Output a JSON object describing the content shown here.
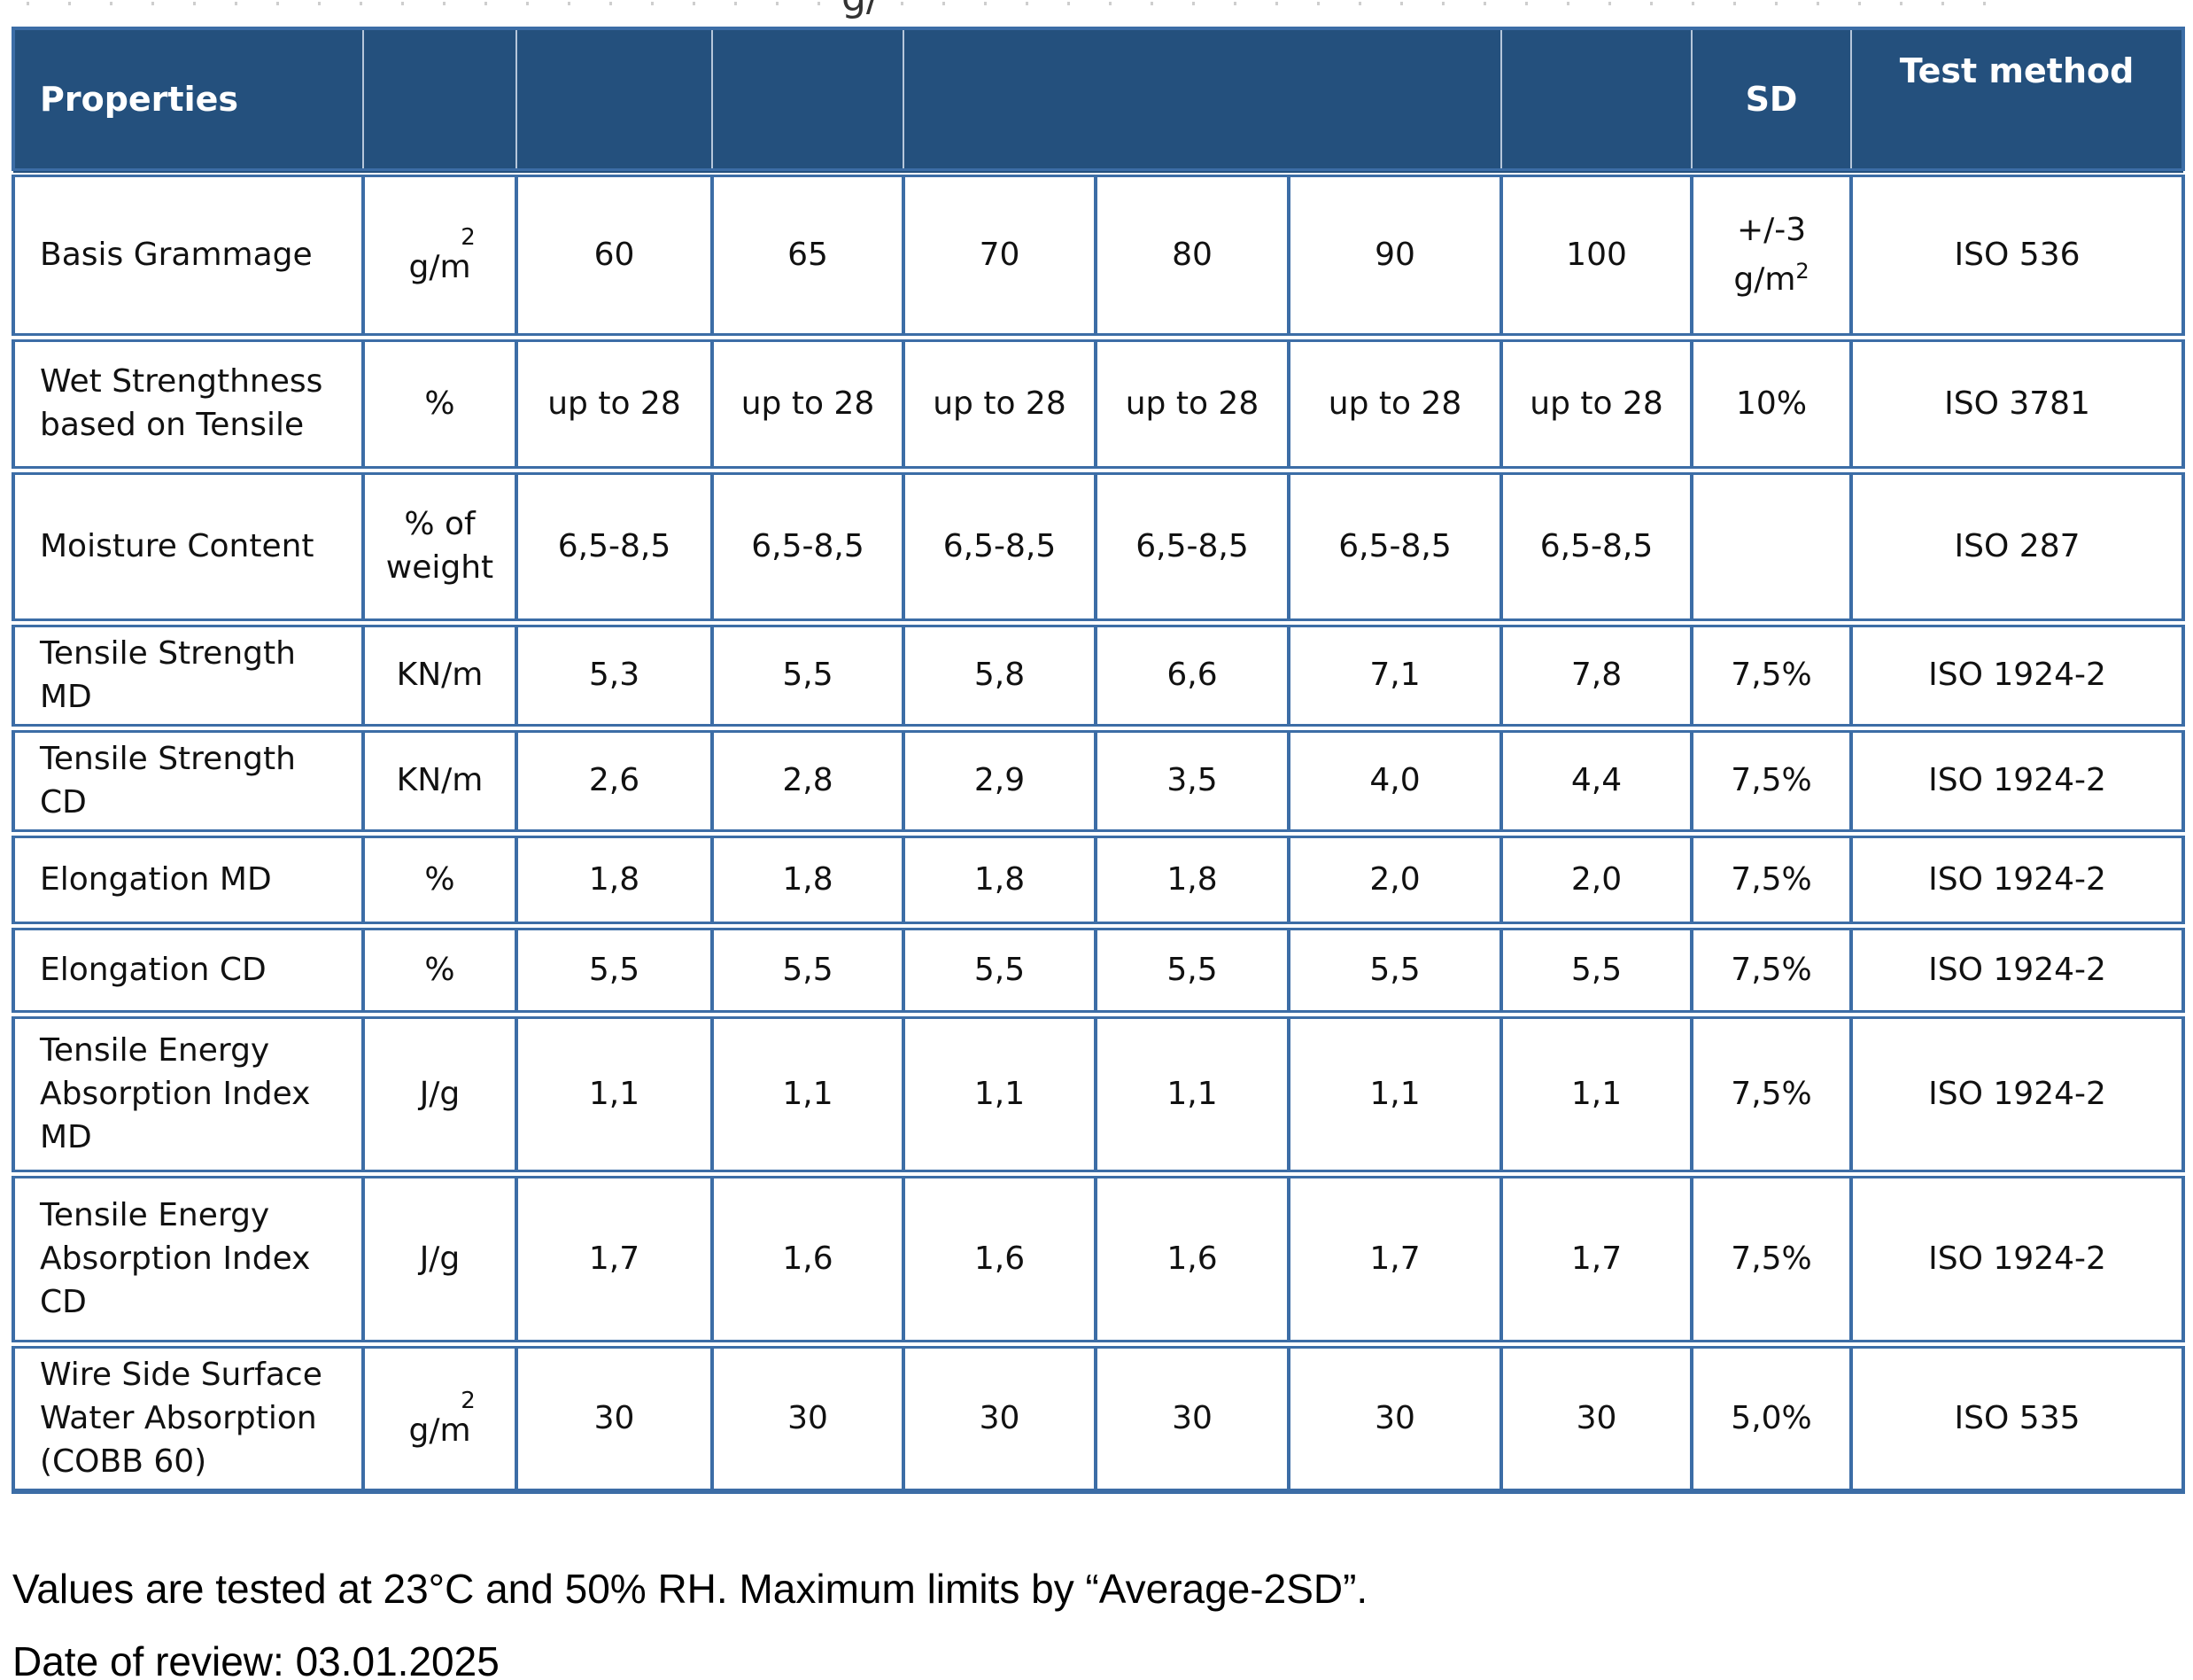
{
  "colors": {
    "header_bg": "#24507D",
    "header_text": "#FFFFFF",
    "border": "#3C6DA6",
    "header_divider": "#B6C6DA",
    "text": "#111111",
    "page_bg": "#FFFFFF"
  },
  "page": {
    "top_fragment": "g/",
    "footer": {
      "line1": "Values are tested at 23°C and 50% RH. Maximum limits by “Average-2SD”.",
      "line2": "Date of review: 03.01.2025"
    }
  },
  "table": {
    "header": {
      "properties": "Properties",
      "sd": "SD",
      "test_method": "Test method"
    },
    "rows": [
      {
        "property": "Basis Grammage",
        "unit_type": "gm2",
        "unit_sup": "2",
        "unit_base": "g/m",
        "values": [
          "60",
          "65",
          "70",
          "80",
          "90",
          "100"
        ],
        "sd_type": "pm_gm2",
        "sd_line1": "+/-3",
        "sd_line2_base": "g/m",
        "sd_line2_sup": "2",
        "method": "ISO 536"
      },
      {
        "property": "Wet Strengthness based on Tensile",
        "unit": "%",
        "values": [
          "up to 28",
          "up to 28",
          "up to 28",
          "up to 28",
          "up to 28",
          "up to 28"
        ],
        "sd": "10%",
        "method": "ISO 3781"
      },
      {
        "property": "Moisture Content",
        "unit": "% of weight",
        "values": [
          "6,5-8,5",
          "6,5-8,5",
          "6,5-8,5",
          "6,5-8,5",
          "6,5-8,5",
          "6,5-8,5"
        ],
        "sd": "",
        "method": "ISO 287"
      },
      {
        "property": "Tensile Strength MD",
        "unit": "KN/m",
        "values": [
          "5,3",
          "5,5",
          "5,8",
          "6,6",
          "7,1",
          "7,8"
        ],
        "sd": "7,5%",
        "method": "ISO 1924-2"
      },
      {
        "property": "Tensile Strength CD",
        "unit": "KN/m",
        "values": [
          "2,6",
          "2,8",
          "2,9",
          "3,5",
          "4,0",
          "4,4"
        ],
        "sd": "7,5%",
        "method": "ISO 1924-2"
      },
      {
        "property": "Elongation MD",
        "unit": "%",
        "values": [
          "1,8",
          "1,8",
          "1,8",
          "1,8",
          "2,0",
          "2,0"
        ],
        "sd": "7,5%",
        "method": "ISO 1924-2"
      },
      {
        "property": "Elongation CD",
        "unit": "%",
        "values": [
          "5,5",
          "5,5",
          "5,5",
          "5,5",
          "5,5",
          "5,5"
        ],
        "sd": "7,5%",
        "method": "ISO 1924-2"
      },
      {
        "property": "Tensile Energy Absorption Index MD",
        "unit": "J/g",
        "values": [
          "1,1",
          "1,1",
          "1,1",
          "1,1",
          "1,1",
          "1,1"
        ],
        "sd": "7,5%",
        "method": "ISO 1924-2"
      },
      {
        "property": "Tensile Energy Absorption Index CD",
        "unit": "J/g",
        "values": [
          "1,7",
          "1,6",
          "1,6",
          "1,6",
          "1,7",
          "1,7"
        ],
        "sd": "7,5%",
        "method": "ISO 1924-2"
      },
      {
        "property": "Wire Side Surface Water Absorption (COBB 60)",
        "unit_type": "gm2",
        "unit_sup": "2",
        "unit_base": "g/m",
        "values": [
          "30",
          "30",
          "30",
          "30",
          "30",
          "30"
        ],
        "sd": "5,0%",
        "method": "ISO 535"
      }
    ]
  }
}
